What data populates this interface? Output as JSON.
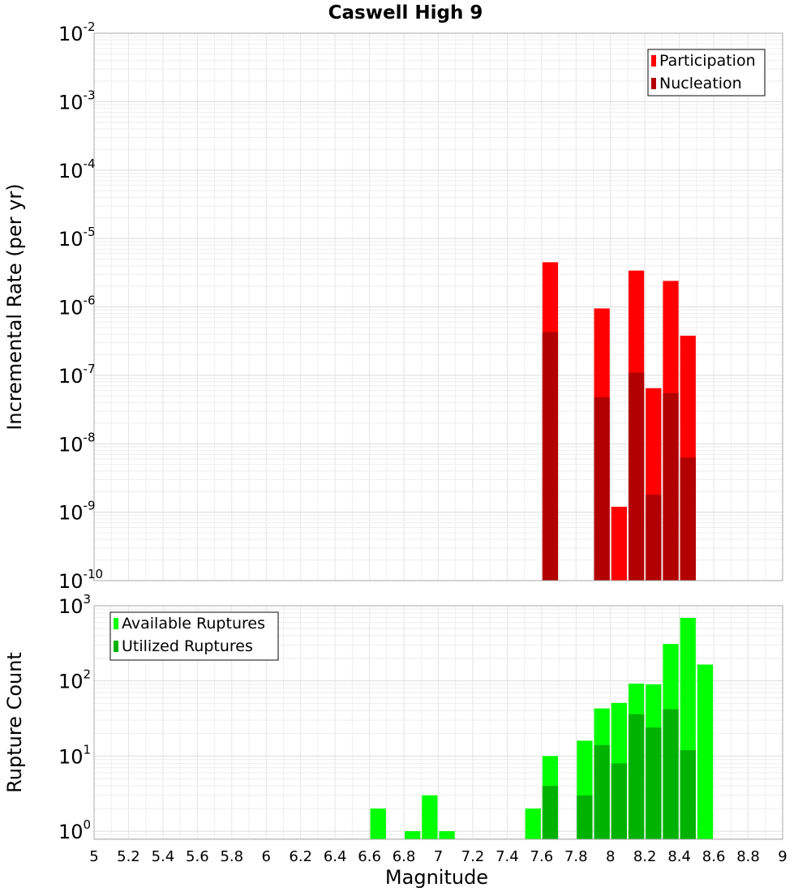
{
  "chart_data": [
    {
      "type": "bar",
      "title": "Caswell High 9",
      "xlabel": "",
      "ylabel": "Incremental Rate (per yr)",
      "xlim": [
        5,
        9
      ],
      "ylim": [
        1e-10,
        0.01
      ],
      "yscale": "log",
      "grid": true,
      "legend_position": "top-right",
      "y_ticks": [
        {
          "base": "10",
          "exp": "-10"
        },
        {
          "base": "10",
          "exp": "-9"
        },
        {
          "base": "10",
          "exp": "-8"
        },
        {
          "base": "10",
          "exp": "-7"
        },
        {
          "base": "10",
          "exp": "-6"
        },
        {
          "base": "10",
          "exp": "-5"
        },
        {
          "base": "10",
          "exp": "-4"
        },
        {
          "base": "10",
          "exp": "-3"
        },
        {
          "base": "10",
          "exp": "-2"
        }
      ],
      "x": [
        7.65,
        7.95,
        8.05,
        8.15,
        8.25,
        8.35,
        8.45
      ],
      "series": [
        {
          "name": "Participation",
          "color": "#ff0000",
          "values": [
            4.5e-06,
            9.5e-07,
            1.2e-09,
            3.4e-06,
            6.5e-08,
            2.4e-06,
            3.8e-07
          ]
        },
        {
          "name": "Nucleation",
          "color": "#b20000",
          "values": [
            4.3e-07,
            4.8e-08,
            null,
            1.1e-07,
            1.8e-09,
            5.5e-08,
            6.3e-09
          ]
        }
      ]
    },
    {
      "type": "bar",
      "title": "",
      "xlabel": "Magnitude",
      "ylabel": "Rupture Count",
      "xlim": [
        5,
        9
      ],
      "ylim": [
        0.78,
        1000
      ],
      "yscale": "log",
      "grid": true,
      "legend_position": "top-left",
      "x_ticks": [
        "5",
        "5.2",
        "5.4",
        "5.6",
        "5.8",
        "6",
        "6.2",
        "6.4",
        "6.6",
        "6.8",
        "7",
        "7.2",
        "7.4",
        "7.6",
        "7.8",
        "8",
        "8.2",
        "8.4",
        "8.6",
        "8.8",
        "9"
      ],
      "y_ticks": [
        {
          "base": "10",
          "exp": "0"
        },
        {
          "base": "10",
          "exp": "1"
        },
        {
          "base": "10",
          "exp": "2"
        },
        {
          "base": "10",
          "exp": "3"
        }
      ],
      "x": [
        6.65,
        6.85,
        6.95,
        7.05,
        7.55,
        7.65,
        7.85,
        7.95,
        8.05,
        8.15,
        8.25,
        8.35,
        8.45,
        8.55
      ],
      "series": [
        {
          "name": "Available Ruptures",
          "color": "#00ff00",
          "values": [
            2,
            1,
            3,
            1,
            2,
            10,
            16,
            43,
            51,
            92,
            90,
            310,
            690,
            165
          ]
        },
        {
          "name": "Utilized Ruptures",
          "color": "#00b200",
          "values": [
            null,
            null,
            null,
            null,
            null,
            4,
            3,
            14,
            8,
            36,
            24,
            42,
            12,
            null
          ]
        }
      ]
    }
  ]
}
